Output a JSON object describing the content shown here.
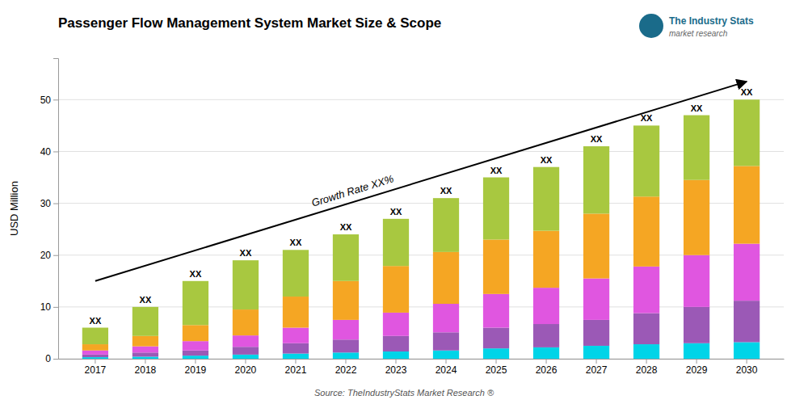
{
  "chart_data": {
    "type": "bar",
    "stacked": true,
    "title": "Passenger Flow Management System Market Size & Scope",
    "ylabel": "USD Million",
    "source": "Source: TheIndustryStats Market Research ®",
    "logo": {
      "title": "The Industry Stats",
      "subtitle": "market research"
    },
    "categories": [
      "2017",
      "2018",
      "2019",
      "2020",
      "2021",
      "2022",
      "2023",
      "2024",
      "2025",
      "2026",
      "2027",
      "2028",
      "2029",
      "2030"
    ],
    "series": [
      {
        "color": "#00d4e8",
        "values": [
          0.3,
          0.4,
          0.6,
          0.8,
          1.0,
          1.2,
          1.4,
          1.6,
          2.0,
          2.2,
          2.5,
          2.8,
          3.0,
          3.2
        ]
      },
      {
        "color": "#9b59b6",
        "values": [
          0.5,
          0.8,
          1.0,
          1.5,
          2.0,
          2.5,
          3.0,
          3.5,
          4.0,
          4.5,
          5.0,
          6.0,
          7.0,
          8.0
        ]
      },
      {
        "color": "#e056e0",
        "values": [
          0.8,
          1.2,
          1.8,
          2.2,
          3.0,
          3.8,
          4.5,
          5.5,
          6.5,
          7.0,
          8.0,
          9.0,
          10.0,
          11.0
        ]
      },
      {
        "color": "#f5a623",
        "values": [
          1.2,
          2.0,
          3.1,
          5.0,
          6.0,
          7.5,
          9.0,
          10.0,
          10.5,
          11.0,
          12.5,
          13.5,
          14.5,
          15.0
        ]
      },
      {
        "color": "#a8c840",
        "values": [
          3.2,
          5.6,
          8.5,
          9.5,
          9.0,
          9.0,
          9.1,
          10.4,
          12.0,
          12.3,
          13.0,
          13.7,
          12.5,
          12.8
        ]
      }
    ],
    "totals": [
      6,
      10,
      15,
      19,
      21,
      24,
      27,
      31,
      35,
      37,
      41,
      45,
      47,
      50
    ],
    "total_labels": [
      "XX",
      "XX",
      "XX",
      "XX",
      "XX",
      "XX",
      "XX",
      "XX",
      "XX",
      "XX",
      "XX",
      "XX",
      "XX",
      "XX"
    ],
    "arrow": {
      "x0": "2017",
      "y0": 15,
      "x1": "2030",
      "y1": 53.5,
      "label": "Growth Rate XX%"
    },
    "ylim": [
      0,
      58
    ],
    "yticks": [
      0,
      10,
      20,
      30,
      40,
      50
    ],
    "grid": true
  }
}
